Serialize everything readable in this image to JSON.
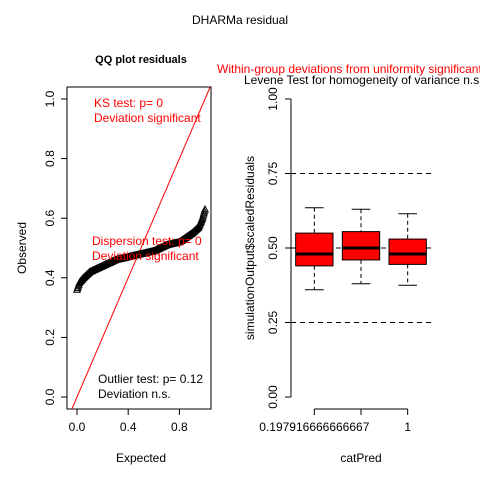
{
  "figure_title": "DHARMa residual",
  "colors": {
    "axis": "#000000",
    "red": "#ff0000",
    "box_fill": "#ff0000",
    "qq_points": "#000000"
  },
  "chart_data": [
    {
      "type": "scatter",
      "title": "QQ plot residuals",
      "xlabel": "Expected",
      "ylabel": "Observed",
      "xlim": [
        0,
        1
      ],
      "ylim": [
        0,
        1
      ],
      "x_ticks": [
        "0.0",
        "0.4",
        "0.8"
      ],
      "x_tick_values": [
        0.0,
        0.4,
        0.8
      ],
      "y_ticks": [
        "0.0",
        "0.2",
        "0.4",
        "0.6",
        "0.8",
        "1.0"
      ],
      "y_tick_values": [
        0.0,
        0.2,
        0.4,
        0.6,
        0.8,
        1.0
      ],
      "reference_line": {
        "from": [
          0,
          0
        ],
        "to": [
          1,
          1
        ]
      },
      "qq_curve": {
        "x": [
          0.0,
          0.02,
          0.05,
          0.1,
          0.15,
          0.2,
          0.3,
          0.4,
          0.5,
          0.6,
          0.7,
          0.8,
          0.85,
          0.9,
          0.95,
          0.98,
          1.0
        ],
        "y": [
          0.36,
          0.385,
          0.4,
          0.42,
          0.43,
          0.44,
          0.46,
          0.47,
          0.48,
          0.49,
          0.51,
          0.52,
          0.535,
          0.55,
          0.57,
          0.6,
          0.63
        ]
      },
      "annotations": {
        "ks_test": "KS test: p= 0",
        "ks_result": "Deviation  significant",
        "dispersion_test": "Dispersion test: p= 0",
        "dispersion_result": "Deviation  significant",
        "outlier_test": "Outlier test: p= 0.12",
        "outlier_result": "Deviation  n.s."
      }
    },
    {
      "type": "box",
      "title_red": "Within-group deviations from uniformity significant",
      "title_black": "Levene Test for homogeneity of variance n.s.",
      "xlabel": "catPred",
      "ylabel": "simulationOutput$scaledResiduals",
      "ylim": [
        0,
        1
      ],
      "y_ticks": [
        "0.00",
        "0.25",
        "0.50",
        "0.75",
        "1.00"
      ],
      "y_tick_values": [
        0.0,
        0.25,
        0.5,
        0.75,
        1.0
      ],
      "categories": [
        "0.197916666666667",
        "",
        "1"
      ],
      "x_tick_label_indices": [
        0,
        2
      ],
      "boxes": [
        {
          "min": 0.36,
          "q1": 0.44,
          "median": 0.48,
          "q3": 0.55,
          "max": 0.635
        },
        {
          "min": 0.38,
          "q1": 0.46,
          "median": 0.5,
          "q3": 0.555,
          "max": 0.63
        },
        {
          "min": 0.375,
          "q1": 0.445,
          "median": 0.48,
          "q3": 0.53,
          "max": 0.615
        }
      ],
      "reference_lines": [
        0.25,
        0.5,
        0.75
      ]
    }
  ]
}
